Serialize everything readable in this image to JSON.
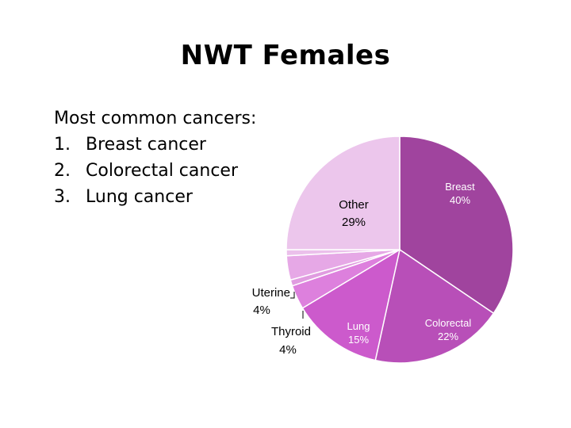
{
  "title": "NWT Females",
  "intro": "Most common cancers:",
  "list": [
    {
      "num": "1.",
      "text": "Breast cancer"
    },
    {
      "num": "2.",
      "text": "Colorectal cancer"
    },
    {
      "num": "3.",
      "text": "Lung cancer"
    }
  ],
  "chart_data": {
    "type": "pie",
    "title": "",
    "slices": [
      {
        "label": "Breast",
        "value": 40,
        "value_label": "40%",
        "color": "#a0449e"
      },
      {
        "label": "Colorectal",
        "value": 22,
        "value_label": "22%",
        "color": "#b84fb8"
      },
      {
        "label": "Lung",
        "value": 15,
        "value_label": "15%",
        "color": "#cc5acc"
      },
      {
        "label": "Thyroid",
        "value": 4,
        "value_label": "4%",
        "color": "#dd80dd"
      },
      {
        "label": "",
        "value": 1,
        "value_label": "",
        "color": "#e09ce0"
      },
      {
        "label": "Uterine",
        "value": 4,
        "value_label": "4%",
        "color": "#e6a8e6"
      },
      {
        "label": "",
        "value": 1,
        "value_label": "",
        "color": "#ebc0eb"
      },
      {
        "label": "Other",
        "value": 29,
        "value_label": "29%",
        "color": "#ecc6ec"
      }
    ],
    "start_angle": 0,
    "direction": "clockwise"
  }
}
